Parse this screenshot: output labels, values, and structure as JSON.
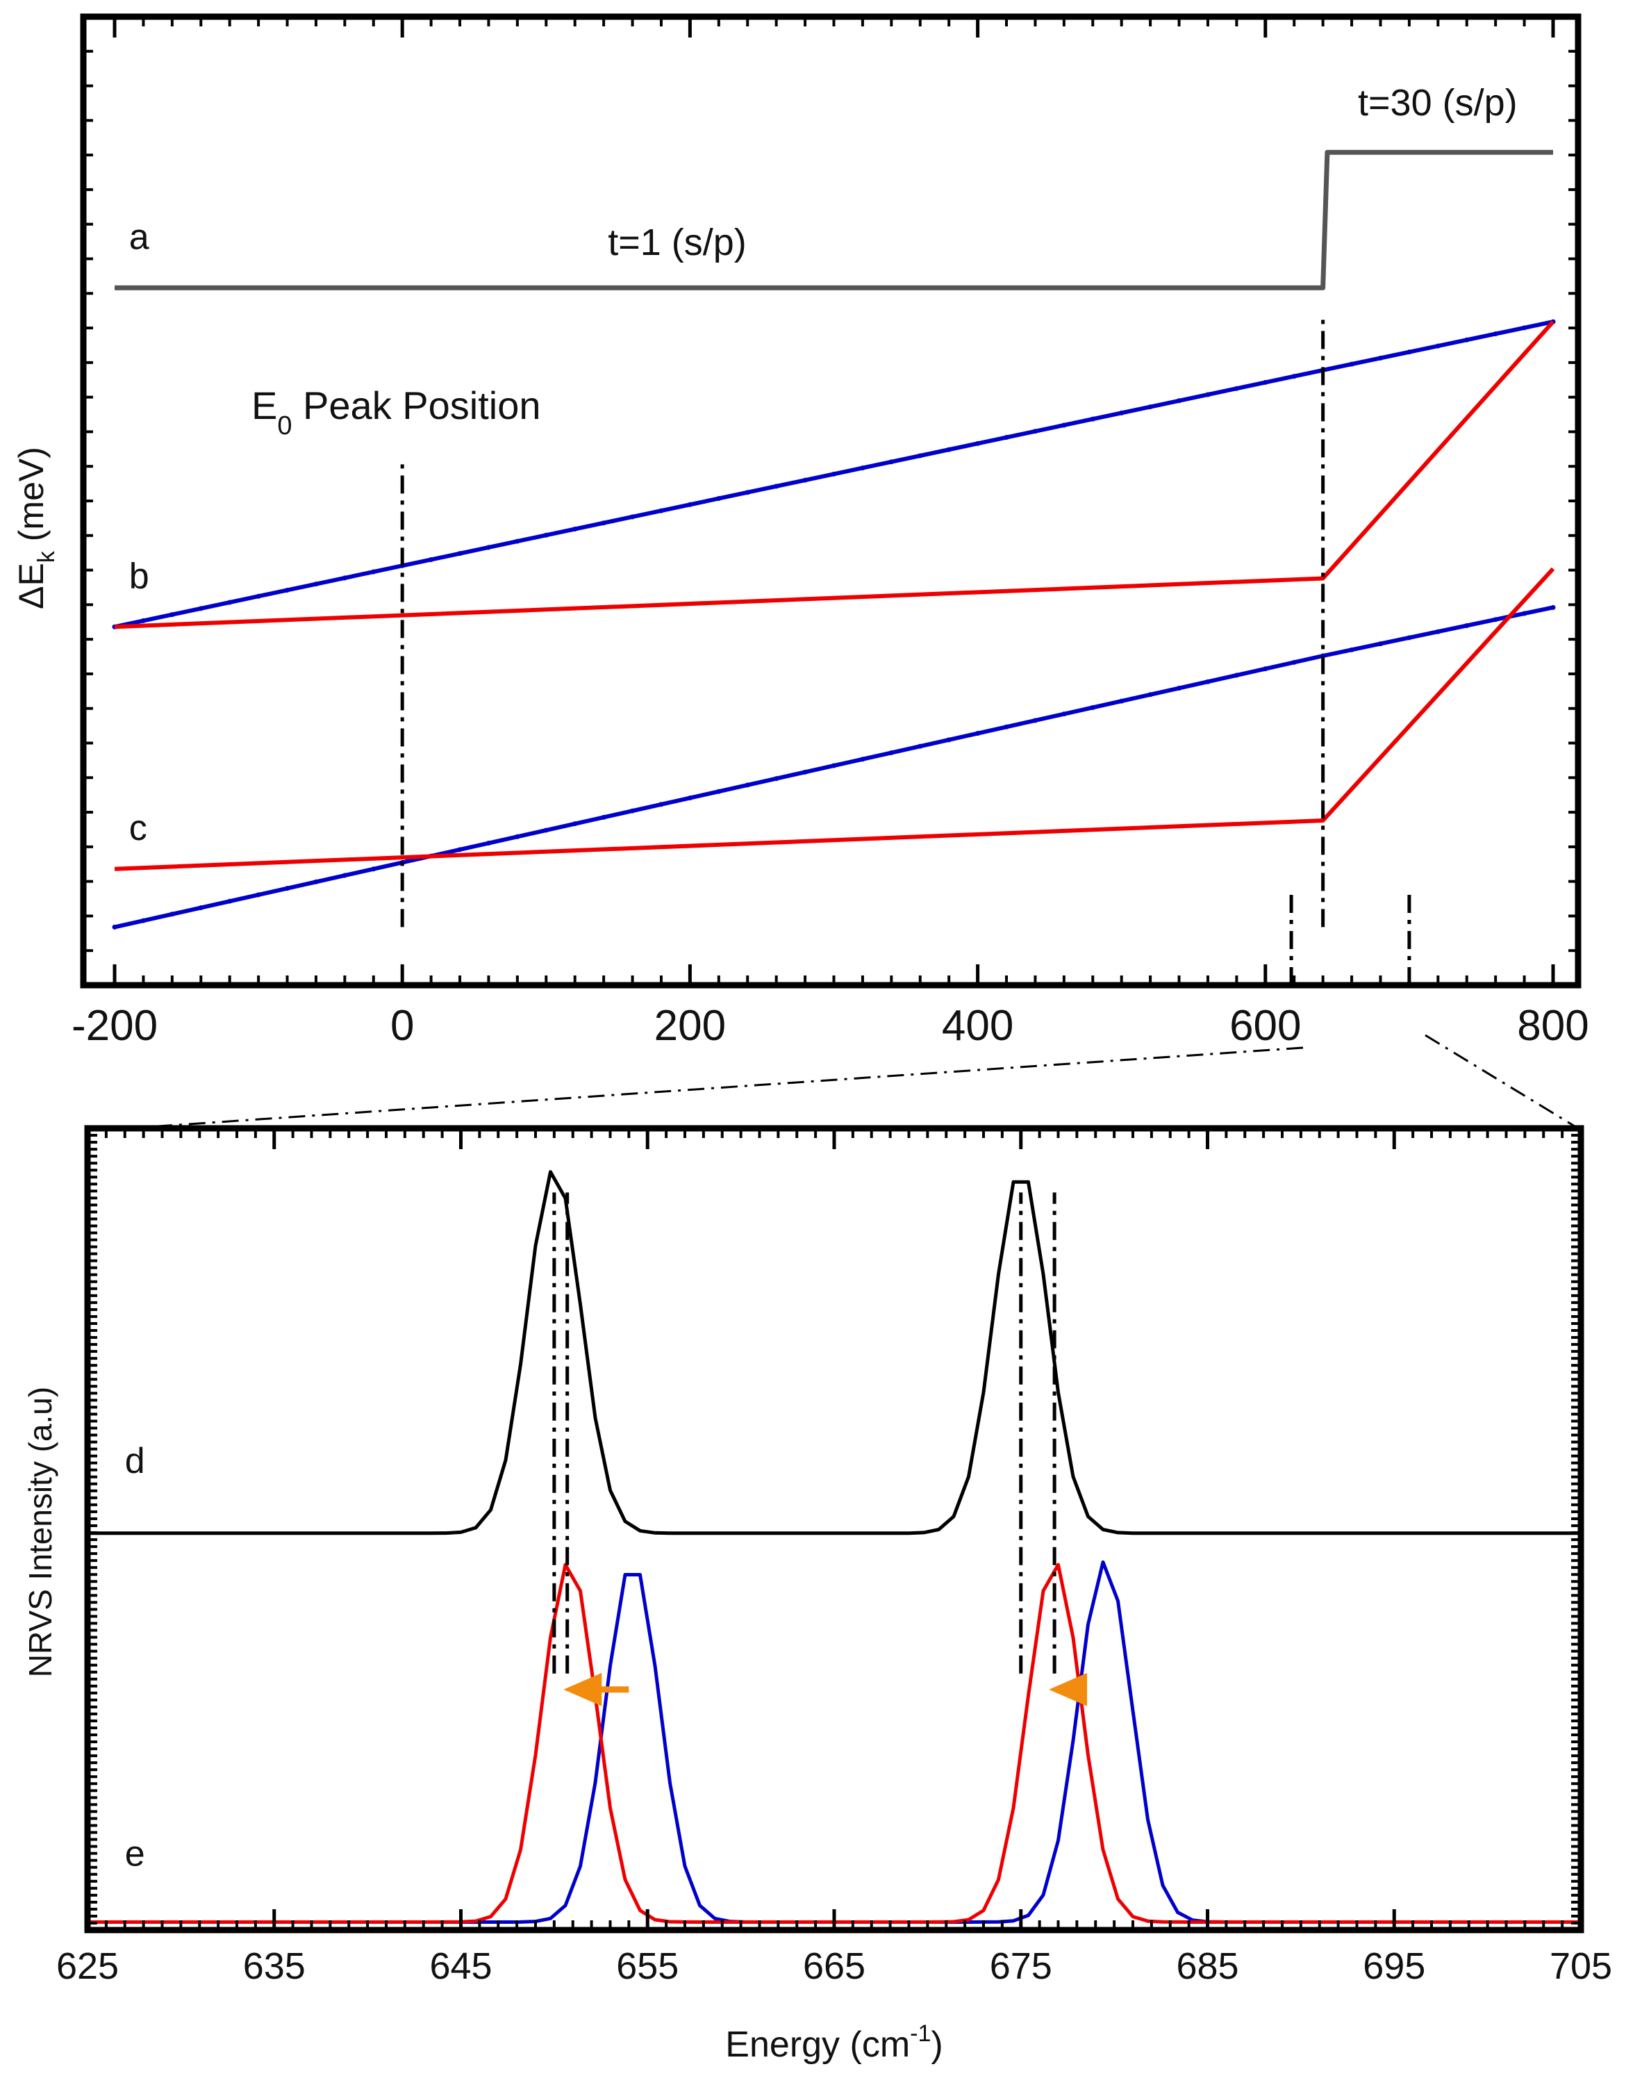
{
  "colors": {
    "frame": "#000000",
    "step": "#555555",
    "blue": "#0000cc",
    "red": "#ee0000",
    "black": "#000000",
    "arrow": "#f28c0f"
  },
  "chart_data": [
    {
      "id": "top",
      "type": "line",
      "title": "",
      "xlabel": "",
      "ylabel_prefix": "ΔE",
      "ylabel_sub": "k",
      "ylabel_suffix": " (meV)",
      "xlim": [
        -200,
        800
      ],
      "ylim": [
        0,
        10
      ],
      "x_ticks": [
        -200,
        0,
        200,
        400,
        600,
        800
      ],
      "x_tick_labels": [
        "-200",
        "0",
        "200",
        "400",
        "600",
        "800"
      ],
      "annotations": {
        "peak_prefix": "E",
        "peak_sub": "0",
        "peak_suffix": " Peak Position",
        "t1": "t=1 (s/p)",
        "t30": "t=30 (s/p)"
      },
      "curve_labels": [
        {
          "label": "a",
          "x": -190,
          "y": 7.6
        },
        {
          "label": "b",
          "x": -190,
          "y": 4.1
        },
        {
          "label": "c",
          "x": -190,
          "y": 1.5
        }
      ],
      "series": [
        {
          "name": "a-step",
          "color_key": "step",
          "points": [
            [
              -200,
              7.2
            ],
            [
              640,
              7.2
            ],
            [
              643,
              8.6
            ],
            [
              800,
              8.6
            ]
          ]
        },
        {
          "name": "b-blue",
          "color_key": "blue",
          "points": [
            [
              -200,
              3.7
            ],
            [
              640,
              6.35
            ],
            [
              800,
              6.85
            ]
          ]
        },
        {
          "name": "b-red",
          "color_key": "red",
          "points": [
            [
              -200,
              3.7
            ],
            [
              640,
              4.2
            ],
            [
              800,
              6.85
            ]
          ]
        },
        {
          "name": "c-blue",
          "color_key": "blue",
          "points": [
            [
              -200,
              0.6
            ],
            [
              640,
              3.4
            ],
            [
              800,
              3.9
            ]
          ]
        },
        {
          "name": "c-red",
          "color_key": "red",
          "points": [
            [
              -200,
              1.2
            ],
            [
              640,
              1.7
            ],
            [
              800,
              4.3
            ]
          ]
        }
      ],
      "guides": [
        {
          "x": 0,
          "y_from": 0.6,
          "y_to": 5.4
        },
        {
          "x": 640,
          "y_from": 0.6,
          "y_to": 6.9
        },
        {
          "x": 618,
          "y_from": 0.0,
          "y_to": 1.0
        },
        {
          "x": 700,
          "y_from": 0.0,
          "y_to": 1.0
        }
      ]
    },
    {
      "id": "bottom",
      "type": "line",
      "title": "",
      "xlabel_prefix": "Energy (cm",
      "xlabel_sup": "-1",
      "xlabel_suffix": ")",
      "ylabel": "NRVS Intensity (a.u)",
      "xlim": [
        625,
        705
      ],
      "ylim": [
        0,
        10
      ],
      "x_ticks": [
        625,
        635,
        645,
        655,
        665,
        675,
        685,
        695,
        705
      ],
      "x_tick_labels": [
        "625",
        "635",
        "645",
        "655",
        "665",
        "675",
        "685",
        "695",
        "705"
      ],
      "curve_labels": [
        {
          "label": "d",
          "x": 627,
          "y": 5.7
        },
        {
          "label": "e",
          "x": 627,
          "y": 0.8
        }
      ],
      "series": [
        {
          "name": "d",
          "color_key": "black",
          "baseline": 4.95,
          "amplitude": 4.55,
          "sigma": 1.45,
          "centers": [
            650.0,
            675.0
          ]
        },
        {
          "name": "e-red",
          "color_key": "red",
          "baseline": 0.1,
          "amplitude": 4.5,
          "sigma": 1.45,
          "centers": [
            650.8,
            676.8
          ]
        },
        {
          "name": "e-blue",
          "color_key": "blue",
          "baseline": 0.1,
          "amplitude": 4.5,
          "sigma": 1.45,
          "centers": [
            654.2,
            679.5
          ]
        }
      ],
      "guides": [
        {
          "x": 650.0,
          "y_from": 3.2,
          "y_to": 9.2
        },
        {
          "x": 650.7,
          "y_from": 3.2,
          "y_to": 9.2
        },
        {
          "x": 675.0,
          "y_from": 3.2,
          "y_to": 9.2
        },
        {
          "x": 676.8,
          "y_from": 3.2,
          "y_to": 9.2
        }
      ],
      "arrows": [
        {
          "x_from": 654.0,
          "x_to": 650.5,
          "y": 3.0
        },
        {
          "x_from": 677.6,
          "x_to": 676.5,
          "y": 3.0
        }
      ]
    }
  ]
}
